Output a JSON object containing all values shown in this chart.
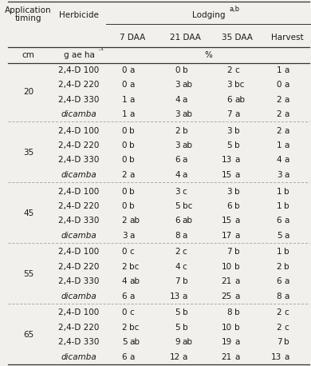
{
  "col_headers": [
    "7 DAA",
    "21 DAA",
    "35 DAA",
    "Harvest"
  ],
  "groups": [
    {
      "timing": "20",
      "rows": [
        {
          "herbicide": "2,4-D 100",
          "vals": [
            [
              "0",
              "a"
            ],
            [
              "0",
              "b"
            ],
            [
              "2",
              "c"
            ],
            [
              "1",
              "a"
            ]
          ]
        },
        {
          "herbicide": "2,4-D 220",
          "vals": [
            [
              "0",
              "a"
            ],
            [
              "3",
              "ab"
            ],
            [
              "3",
              "bc"
            ],
            [
              "0",
              "a"
            ]
          ]
        },
        {
          "herbicide": "2,4-D 330",
          "vals": [
            [
              "1",
              "a"
            ],
            [
              "4",
              "a"
            ],
            [
              "6",
              "ab"
            ],
            [
              "2",
              "a"
            ]
          ]
        },
        {
          "herbicide": "dicamba",
          "vals": [
            [
              "1",
              "a"
            ],
            [
              "3",
              "ab"
            ],
            [
              "7",
              "a"
            ],
            [
              "2",
              "a"
            ]
          ]
        }
      ]
    },
    {
      "timing": "35",
      "rows": [
        {
          "herbicide": "2,4-D 100",
          "vals": [
            [
              "0",
              "b"
            ],
            [
              "2",
              "b"
            ],
            [
              "3",
              "b"
            ],
            [
              "2",
              "a"
            ]
          ]
        },
        {
          "herbicide": "2,4-D 220",
          "vals": [
            [
              "0",
              "b"
            ],
            [
              "3",
              "ab"
            ],
            [
              "5",
              "b"
            ],
            [
              "1",
              "a"
            ]
          ]
        },
        {
          "herbicide": "2,4-D 330",
          "vals": [
            [
              "0",
              "b"
            ],
            [
              "6",
              "a"
            ],
            [
              "13",
              "a"
            ],
            [
              "4",
              "a"
            ]
          ]
        },
        {
          "herbicide": "dicamba",
          "vals": [
            [
              "2",
              "a"
            ],
            [
              "4",
              "a"
            ],
            [
              "15",
              "a"
            ],
            [
              "3",
              "a"
            ]
          ]
        }
      ]
    },
    {
      "timing": "45",
      "rows": [
        {
          "herbicide": "2,4-D 100",
          "vals": [
            [
              "0",
              "b"
            ],
            [
              "3",
              "c"
            ],
            [
              "3",
              "b"
            ],
            [
              "1",
              "b"
            ]
          ]
        },
        {
          "herbicide": "2,4-D 220",
          "vals": [
            [
              "0",
              "b"
            ],
            [
              "5",
              "bc"
            ],
            [
              "6",
              "b"
            ],
            [
              "1",
              "b"
            ]
          ]
        },
        {
          "herbicide": "2,4-D 330",
          "vals": [
            [
              "2",
              "ab"
            ],
            [
              "6",
              "ab"
            ],
            [
              "15",
              "a"
            ],
            [
              "6",
              "a"
            ]
          ]
        },
        {
          "herbicide": "dicamba",
          "vals": [
            [
              "3",
              "a"
            ],
            [
              "8",
              "a"
            ],
            [
              "17",
              "a"
            ],
            [
              "5",
              "a"
            ]
          ]
        }
      ]
    },
    {
      "timing": "55",
      "rows": [
        {
          "herbicide": "2,4-D 100",
          "vals": [
            [
              "0",
              "c"
            ],
            [
              "2",
              "c"
            ],
            [
              "7",
              "b"
            ],
            [
              "1",
              "b"
            ]
          ]
        },
        {
          "herbicide": "2,4-D 220",
          "vals": [
            [
              "2",
              "bc"
            ],
            [
              "4",
              "c"
            ],
            [
              "10",
              "b"
            ],
            [
              "2",
              "b"
            ]
          ]
        },
        {
          "herbicide": "2,4-D 330",
          "vals": [
            [
              "4",
              "ab"
            ],
            [
              "7",
              "b"
            ],
            [
              "21",
              "a"
            ],
            [
              "6",
              "a"
            ]
          ]
        },
        {
          "herbicide": "dicamba",
          "vals": [
            [
              "6",
              "a"
            ],
            [
              "13",
              "a"
            ],
            [
              "25",
              "a"
            ],
            [
              "8",
              "a"
            ]
          ]
        }
      ]
    },
    {
      "timing": "65",
      "rows": [
        {
          "herbicide": "2,4-D 100",
          "vals": [
            [
              "0",
              "c"
            ],
            [
              "5",
              "b"
            ],
            [
              "8",
              "b"
            ],
            [
              "2",
              "c"
            ]
          ]
        },
        {
          "herbicide": "2,4-D 220",
          "vals": [
            [
              "2",
              "bc"
            ],
            [
              "5",
              "b"
            ],
            [
              "10",
              "b"
            ],
            [
              "2",
              "c"
            ]
          ]
        },
        {
          "herbicide": "2,4-D 330",
          "vals": [
            [
              "5",
              "ab"
            ],
            [
              "9",
              "ab"
            ],
            [
              "19",
              "a"
            ],
            [
              "7",
              "b"
            ]
          ]
        },
        {
          "herbicide": "dicamba",
          "vals": [
            [
              "6",
              "a"
            ],
            [
              "12",
              "a"
            ],
            [
              "21",
              "a"
            ],
            [
              "13",
              "a"
            ]
          ]
        }
      ]
    }
  ],
  "bg_color": "#f2f0ec",
  "text_color": "#1a1a1a",
  "line_color": "#333333",
  "dashed_line_color": "#999999",
  "font_size": 7.5,
  "header_font_size": 7.5
}
